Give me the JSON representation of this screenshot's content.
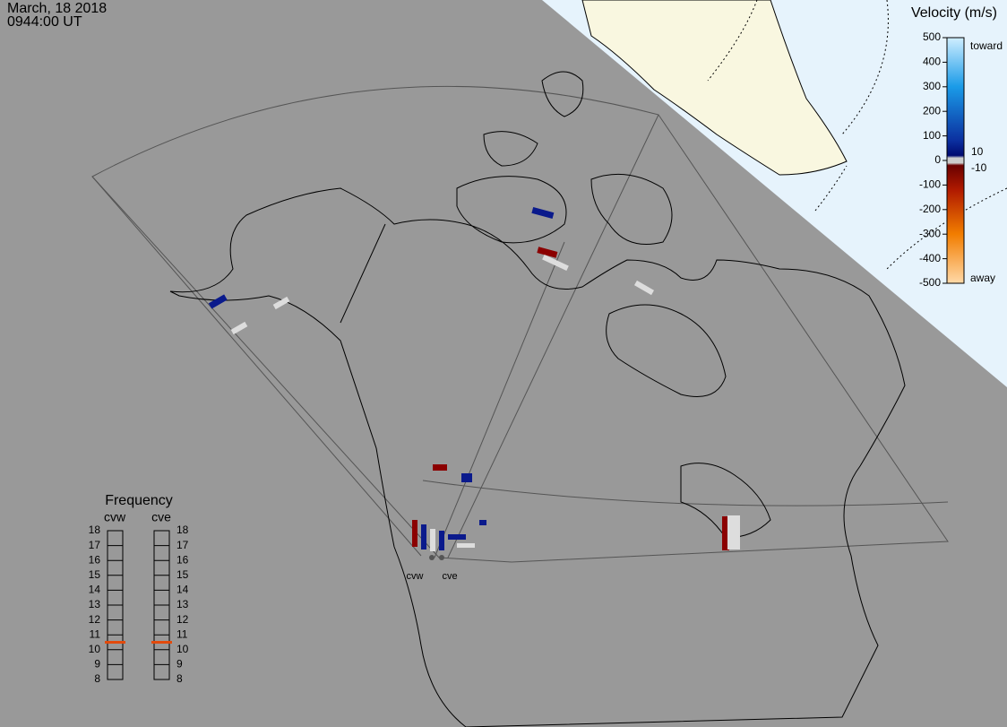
{
  "header": {
    "date": "March, 18 2018",
    "time": "0944:00 UT"
  },
  "velocity_scale": {
    "title": "Velocity (m/s)",
    "ticks": [
      500,
      400,
      300,
      200,
      100,
      0,
      -100,
      -200,
      -300,
      -400,
      -500
    ],
    "toward": "toward",
    "away": "away",
    "inner_ticks": [
      10,
      -10
    ]
  },
  "frequency": {
    "title": "Frequency",
    "ticks": [
      18,
      17,
      16,
      15,
      14,
      13,
      12,
      11,
      10,
      9,
      8
    ],
    "radars": [
      {
        "name": "cvw",
        "value": 10.5
      },
      {
        "name": "cve",
        "value": 10.5
      }
    ]
  }
}
